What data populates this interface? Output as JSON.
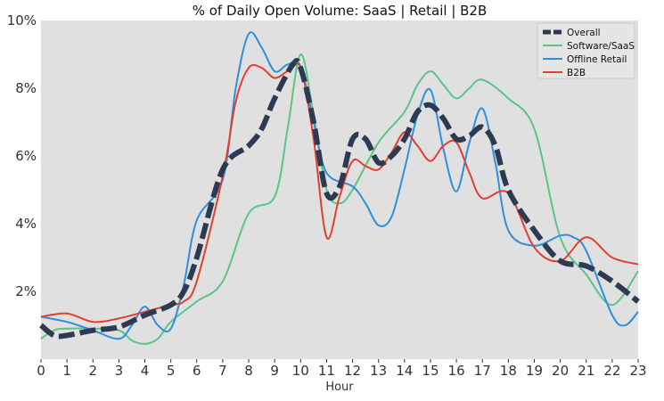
{
  "chart_data": {
    "type": "line",
    "title": "% of Daily Open Volume: SaaS | Retail | B2B",
    "xlabel": "Hour",
    "ylabel": "",
    "xlim": [
      0,
      23
    ],
    "ylim": [
      0,
      10
    ],
    "x_ticks": [
      0,
      1,
      2,
      3,
      4,
      5,
      6,
      7,
      8,
      9,
      10,
      11,
      12,
      13,
      14,
      15,
      16,
      17,
      18,
      19,
      20,
      21,
      22,
      23
    ],
    "y_ticks": [
      {
        "value": 2,
        "label": "2%"
      },
      {
        "value": 4,
        "label": "4%"
      },
      {
        "value": 6,
        "label": "6%"
      },
      {
        "value": 8,
        "label": "8%"
      },
      {
        "value": 10,
        "label": "10%"
      }
    ],
    "grid": false,
    "legend_position": "top-right",
    "series": [
      {
        "name": "Overall",
        "color": "#2c3a52",
        "style": "dashed-thick",
        "points": [
          [
            0,
            1.0
          ],
          [
            0.5,
            0.7
          ],
          [
            1,
            0.7
          ],
          [
            2,
            0.85
          ],
          [
            3,
            0.95
          ],
          [
            4,
            1.3
          ],
          [
            5,
            1.6
          ],
          [
            5.5,
            2.0
          ],
          [
            6,
            3.0
          ],
          [
            7,
            5.6
          ],
          [
            8,
            6.3
          ],
          [
            8.5,
            6.8
          ],
          [
            9,
            7.7
          ],
          [
            9.7,
            8.7
          ],
          [
            10,
            8.6
          ],
          [
            10.5,
            7.0
          ],
          [
            11,
            4.9
          ],
          [
            11.5,
            5.1
          ],
          [
            12,
            6.5
          ],
          [
            12.5,
            6.5
          ],
          [
            13,
            5.8
          ],
          [
            13.5,
            6.0
          ],
          [
            14,
            6.5
          ],
          [
            14.5,
            7.3
          ],
          [
            15,
            7.5
          ],
          [
            15.5,
            7.1
          ],
          [
            16,
            6.5
          ],
          [
            16.5,
            6.6
          ],
          [
            17,
            6.85
          ],
          [
            17.5,
            6.3
          ],
          [
            18,
            5.0
          ],
          [
            19,
            3.8
          ],
          [
            20,
            2.9
          ],
          [
            21,
            2.75
          ],
          [
            22,
            2.3
          ],
          [
            23,
            1.7
          ]
        ]
      },
      {
        "name": "Software/SaaS",
        "color": "#5ac587",
        "style": "solid",
        "points": [
          [
            0,
            0.6
          ],
          [
            0.5,
            0.85
          ],
          [
            1,
            0.9
          ],
          [
            2,
            0.9
          ],
          [
            3,
            0.85
          ],
          [
            3.5,
            0.55
          ],
          [
            4,
            0.45
          ],
          [
            4.5,
            0.6
          ],
          [
            5,
            1.1
          ],
          [
            6,
            1.7
          ],
          [
            7,
            2.3
          ],
          [
            8,
            4.3
          ],
          [
            9,
            4.8
          ],
          [
            9.5,
            6.8
          ],
          [
            10,
            9.0
          ],
          [
            10.5,
            7.2
          ],
          [
            11,
            5.0
          ],
          [
            11.5,
            4.6
          ],
          [
            12,
            5.0
          ],
          [
            13,
            6.4
          ],
          [
            14,
            7.3
          ],
          [
            14.5,
            8.1
          ],
          [
            15,
            8.5
          ],
          [
            15.5,
            8.1
          ],
          [
            16,
            7.7
          ],
          [
            16.5,
            8.0
          ],
          [
            17,
            8.25
          ],
          [
            18,
            7.7
          ],
          [
            19,
            6.8
          ],
          [
            20,
            3.6
          ],
          [
            21,
            2.5
          ],
          [
            22,
            1.6
          ],
          [
            23,
            2.6
          ]
        ]
      },
      {
        "name": "Offline Retail",
        "color": "#2f8fd8",
        "style": "solid",
        "points": [
          [
            0,
            1.25
          ],
          [
            1,
            1.1
          ],
          [
            2,
            0.85
          ],
          [
            3,
            0.6
          ],
          [
            3.5,
            1.0
          ],
          [
            4,
            1.55
          ],
          [
            4.5,
            1.0
          ],
          [
            5,
            0.9
          ],
          [
            5.5,
            2.2
          ],
          [
            6,
            4.1
          ],
          [
            7,
            5.3
          ],
          [
            7.5,
            8.0
          ],
          [
            8,
            9.6
          ],
          [
            8.5,
            9.2
          ],
          [
            9,
            8.5
          ],
          [
            9.5,
            8.7
          ],
          [
            10,
            8.65
          ],
          [
            10.5,
            7.0
          ],
          [
            11,
            5.5
          ],
          [
            12,
            5.1
          ],
          [
            12.5,
            4.6
          ],
          [
            13,
            3.95
          ],
          [
            13.5,
            4.2
          ],
          [
            14,
            5.6
          ],
          [
            14.5,
            7.2
          ],
          [
            15,
            7.95
          ],
          [
            15.5,
            6.2
          ],
          [
            16,
            4.95
          ],
          [
            16.5,
            6.4
          ],
          [
            17,
            7.4
          ],
          [
            17.5,
            5.8
          ],
          [
            18,
            3.8
          ],
          [
            19,
            3.35
          ],
          [
            20,
            3.65
          ],
          [
            20.5,
            3.6
          ],
          [
            21,
            3.2
          ],
          [
            22,
            1.3
          ],
          [
            22.5,
            1.0
          ],
          [
            23,
            1.4
          ]
        ]
      },
      {
        "name": "B2B",
        "color": "#e04030",
        "style": "solid",
        "points": [
          [
            0,
            1.25
          ],
          [
            1,
            1.35
          ],
          [
            2,
            1.1
          ],
          [
            3,
            1.2
          ],
          [
            4,
            1.4
          ],
          [
            5,
            1.6
          ],
          [
            5.5,
            1.7
          ],
          [
            6,
            2.3
          ],
          [
            7,
            5.4
          ],
          [
            7.5,
            7.6
          ],
          [
            8,
            8.6
          ],
          [
            8.5,
            8.6
          ],
          [
            9,
            8.3
          ],
          [
            9.5,
            8.5
          ],
          [
            10,
            8.6
          ],
          [
            10.5,
            6.5
          ],
          [
            11,
            3.6
          ],
          [
            11.5,
            4.8
          ],
          [
            12,
            5.85
          ],
          [
            12.5,
            5.7
          ],
          [
            13,
            5.6
          ],
          [
            13.5,
            6.1
          ],
          [
            14,
            6.7
          ],
          [
            14.5,
            6.3
          ],
          [
            15,
            5.85
          ],
          [
            15.5,
            6.3
          ],
          [
            16,
            6.4
          ],
          [
            16.5,
            5.5
          ],
          [
            17,
            4.75
          ],
          [
            18,
            4.9
          ],
          [
            19,
            3.3
          ],
          [
            20,
            2.9
          ],
          [
            21,
            3.6
          ],
          [
            22,
            3.0
          ],
          [
            23,
            2.8
          ]
        ]
      }
    ]
  }
}
